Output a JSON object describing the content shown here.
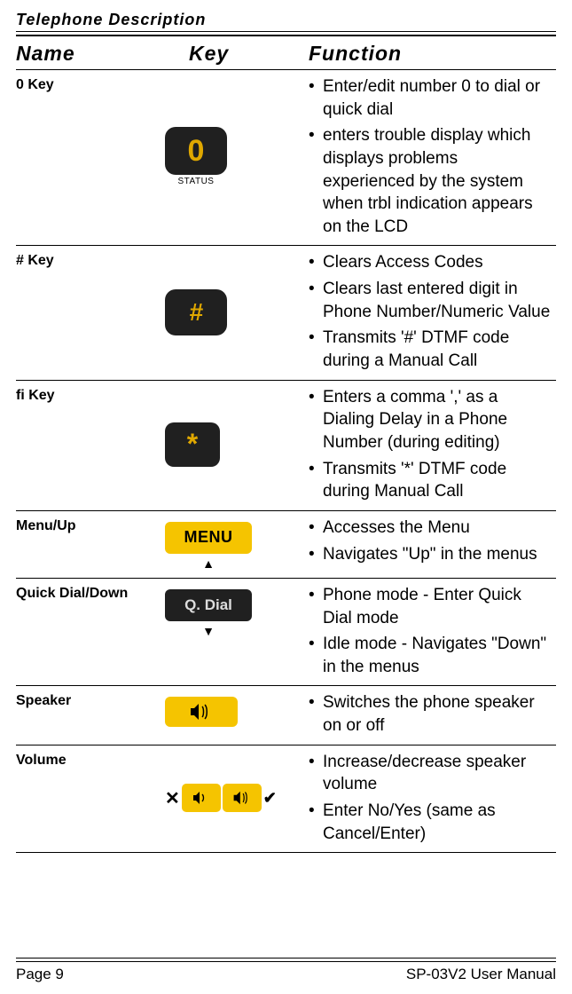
{
  "header": "Telephone Description",
  "columns": {
    "name": "Name",
    "key": "Key",
    "func": "Function"
  },
  "rows": [
    {
      "name": "0 Key",
      "key": {
        "type": "zero",
        "digit": "0",
        "label": "STATUS"
      },
      "funcs": [
        "Enter/edit number 0 to dial or quick dial",
        "enters trouble display which displays problems experienced by the system when trbl indication appears on the LCD"
      ],
      "align": "center"
    },
    {
      "name": "# Key",
      "key": {
        "type": "hash",
        "glyph": "#"
      },
      "funcs": [
        "Clears Access Codes",
        "Clears last entered digit in Phone Number/Numeric Value",
        "Transmits '#' DTMF code during a Manual Call"
      ],
      "align": "center"
    },
    {
      "name": "ﬁ Key",
      "key": {
        "type": "star",
        "glyph": "*"
      },
      "funcs": [
        "Enters a comma ',' as a Dialing Delay in a Phone Number (during editing)",
        "Transmits '*' DTMF code during Manual Call"
      ],
      "align": "center"
    },
    {
      "name": "Menu/Up",
      "key": {
        "type": "menu",
        "label": "MENU",
        "arrow": "▲"
      },
      "funcs": [
        "Accesses the Menu",
        "Navigates \"Up\" in the menus"
      ],
      "align": "top"
    },
    {
      "name": "Quick Dial/Down",
      "key": {
        "type": "qdial",
        "label": "Q. Dial",
        "arrow": "▼"
      },
      "funcs": [
        "Phone mode - Enter Quick Dial mode",
        "Idle mode - Navigates \"Down\" in the menus"
      ],
      "align": "top"
    },
    {
      "name": "Speaker",
      "key": {
        "type": "speaker"
      },
      "funcs": [
        "Switches the phone speaker on or off"
      ],
      "align": "top"
    },
    {
      "name": "Volume",
      "key": {
        "type": "volume",
        "x": "✕",
        "check": "✔"
      },
      "funcs": [
        "Increase/decrease speaker volume",
        "Enter No/Yes (same as Cancel/Enter)"
      ],
      "align": "center"
    }
  ],
  "footer": {
    "left": "Page 9",
    "right": "SP-03V2 User Manual"
  }
}
